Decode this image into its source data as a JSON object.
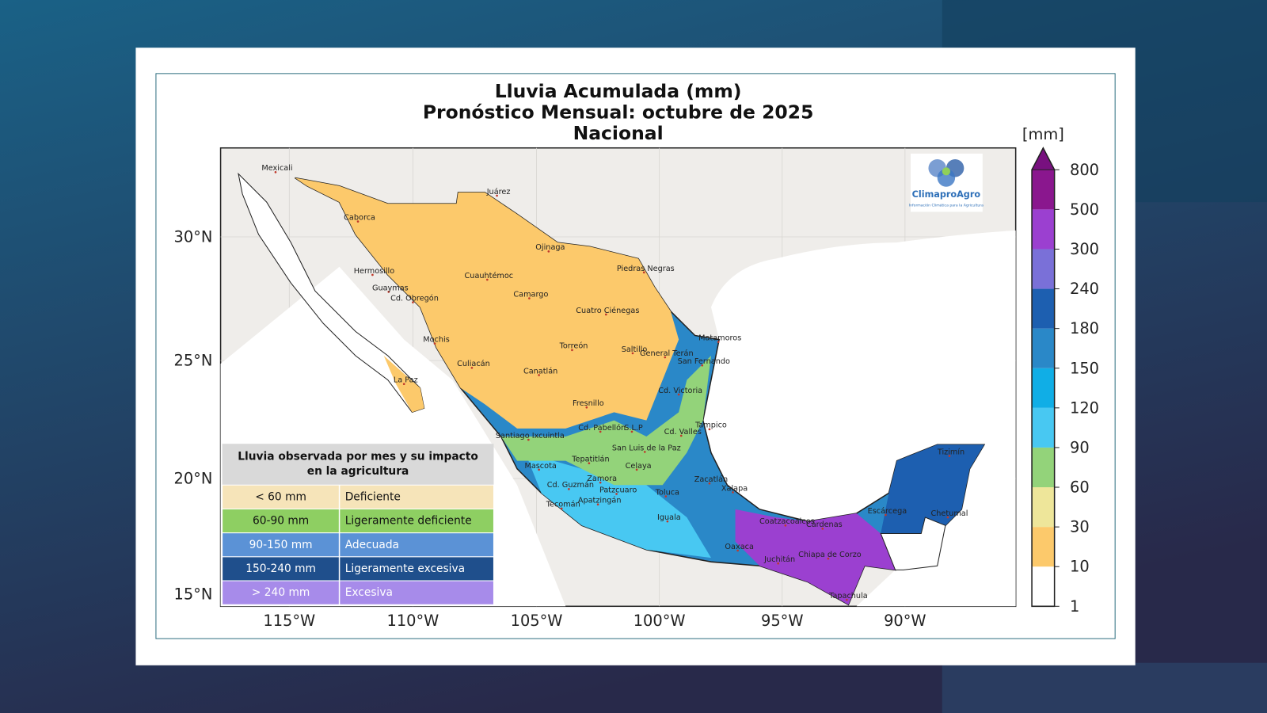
{
  "title": [
    "Lluvia Acumulada (mm)",
    "Pronóstico Mensual: octubre de 2025",
    "Nacional"
  ],
  "logo": {
    "name": "ClimaproAgro",
    "tagline": "Información Climática para la Agricultura"
  },
  "colorbar": {
    "unit": "[mm]",
    "ticks": [
      1,
      10,
      30,
      60,
      90,
      120,
      150,
      180,
      240,
      300,
      500,
      800
    ],
    "colors": [
      "#ffffff",
      "#fcc96b",
      "#eee69a",
      "#93d37a",
      "#48c8f2",
      "#10aee6",
      "#2a88c8",
      "#1d5fb0",
      "#7a70d8",
      "#9b40d0",
      "#8a178e",
      "#78107f"
    ]
  },
  "latitude_labels": [
    "30°N",
    "25°N",
    "20°N",
    "15°N"
  ],
  "longitude_labels": [
    "115°W",
    "110°W",
    "105°W",
    "100°W",
    "95°W",
    "90°W"
  ],
  "legend": {
    "title": "Lluvia observada por mes y su impacto en la agricultura",
    "rows": [
      {
        "range": "< 60 mm",
        "label": "Deficiente",
        "color": "#f6e4b9",
        "text_color": "#111111"
      },
      {
        "range": "60-90 mm",
        "label": "Ligeramente deficiente",
        "color": "#8ecf62",
        "text_color": "#111111"
      },
      {
        "range": "90-150 mm",
        "label": "Adecuada",
        "color": "#5b92d6",
        "text_color": "#ffffff"
      },
      {
        "range": "150-240 mm",
        "label": "Ligeramente excesiva",
        "color": "#1f4f8c",
        "text_color": "#ffffff"
      },
      {
        "range": "> 240 mm",
        "label": "Excesiva",
        "color": "#a78bea",
        "text_color": "#ffffff"
      }
    ]
  },
  "cities": [
    "Mexicali",
    "Juárez",
    "Caborca",
    "Ojinaga",
    "Piedras Negras",
    "Hermosillo",
    "Cuauhtémoc",
    "Guaymas",
    "Camargo",
    "Cd. Obregón",
    "Cuatro Ciénegas",
    "Matamoros",
    "Mochis",
    "Torreón",
    "Saltillo",
    "General Terán",
    "San Fernando",
    "Culiacán",
    "Canatlán",
    "La Paz",
    "Cd. Victoria",
    "Fresnillo",
    "Tampico",
    "Cd. Pabellón",
    "S.L.P",
    "Cd. Valles",
    "Santiago Ixcuintla",
    "San Luis de la Paz",
    "Tepatitlán",
    "Mascota",
    "Celaya",
    "Zamora",
    "Zacatlán",
    "Cd. Guzmán",
    "Patzcuaro",
    "Xalapa",
    "Toluca",
    "Tecomán",
    "Apatzingán",
    "Iguala",
    "Coatzacoalcos",
    "Cárdenas",
    "Escárcega",
    "Chetumal",
    "Tizimín",
    "Oaxaca",
    "Juchitán",
    "Chiapa de Corzo",
    "Tapachula"
  ]
}
